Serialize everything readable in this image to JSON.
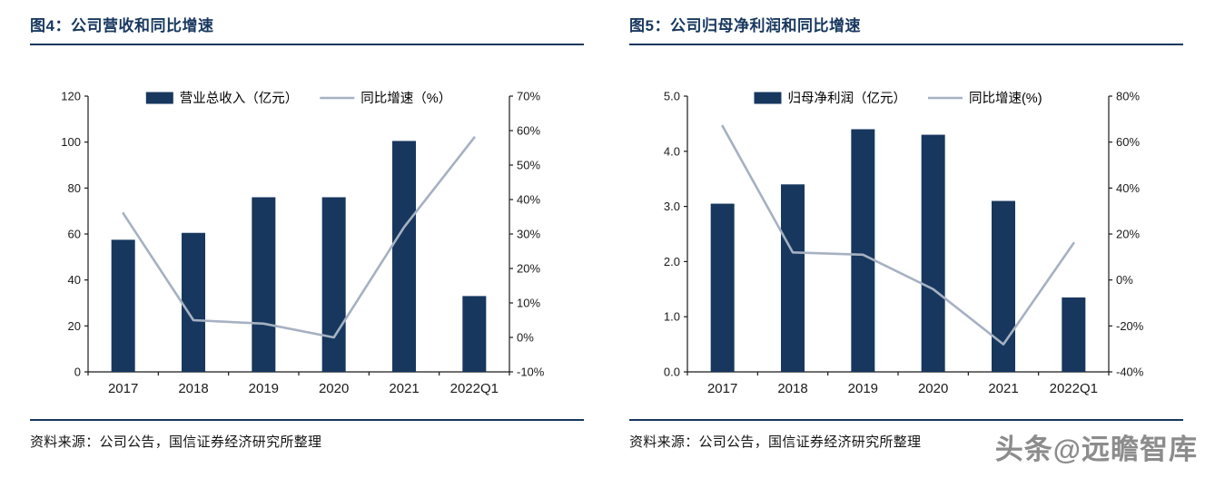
{
  "watermark": "头条@远瞻智库",
  "colors": {
    "bar": "#17375E",
    "line": "#A6B1C2",
    "accent": "#17375E",
    "axis": "#1a1a1a"
  },
  "figures": [
    {
      "title": "图4：公司营收和同比增速",
      "source": "资料来源：公司公告，国信证券经济研究所整理"
    },
    {
      "title": "图5：公司归母净利润和同比增速",
      "source": "资料来源：公司公告，国信证券经济研究所整理"
    }
  ],
  "chart_data": [
    {
      "type": "bar+line",
      "title": "公司营收和同比增速",
      "categories": [
        "2017",
        "2018",
        "2019",
        "2020",
        "2021",
        "2022Q1"
      ],
      "series": [
        {
          "name": "营业总收入（亿元）",
          "type": "bar",
          "axis": "left",
          "values": [
            57.5,
            60.5,
            76,
            76,
            100.5,
            33
          ]
        },
        {
          "name": "同比增速（%）",
          "type": "line",
          "axis": "right",
          "values": [
            36,
            5,
            4,
            0,
            32,
            58
          ]
        }
      ],
      "left_axis": {
        "min": 0,
        "max": 120,
        "step": 20,
        "labels": [
          "0",
          "20",
          "40",
          "60",
          "80",
          "100",
          "120"
        ]
      },
      "right_axis": {
        "min": -10,
        "max": 70,
        "step": 10,
        "labels": [
          "-10%",
          "0%",
          "10%",
          "20%",
          "30%",
          "40%",
          "50%",
          "60%",
          "70%"
        ]
      },
      "legend_position": "top",
      "grid": false
    },
    {
      "type": "bar+line",
      "title": "公司归母净利润和同比增速",
      "categories": [
        "2017",
        "2018",
        "2019",
        "2020",
        "2021",
        "2022Q1"
      ],
      "series": [
        {
          "name": "归母净利润（亿元）",
          "type": "bar",
          "axis": "left",
          "values": [
            3.05,
            3.4,
            4.4,
            4.3,
            3.1,
            1.35
          ]
        },
        {
          "name": "同比增速(%)",
          "type": "line",
          "axis": "right",
          "values": [
            67,
            12,
            11,
            -4,
            -28,
            16
          ]
        }
      ],
      "left_axis": {
        "min": 0,
        "max": 5,
        "step": 1,
        "labels": [
          "0.0",
          "1.0",
          "2.0",
          "3.0",
          "4.0",
          "5.0"
        ]
      },
      "right_axis": {
        "min": -40,
        "max": 80,
        "step": 20,
        "labels": [
          "-40%",
          "-20%",
          "0%",
          "20%",
          "40%",
          "60%",
          "80%"
        ]
      },
      "legend_position": "top",
      "grid": false
    }
  ]
}
